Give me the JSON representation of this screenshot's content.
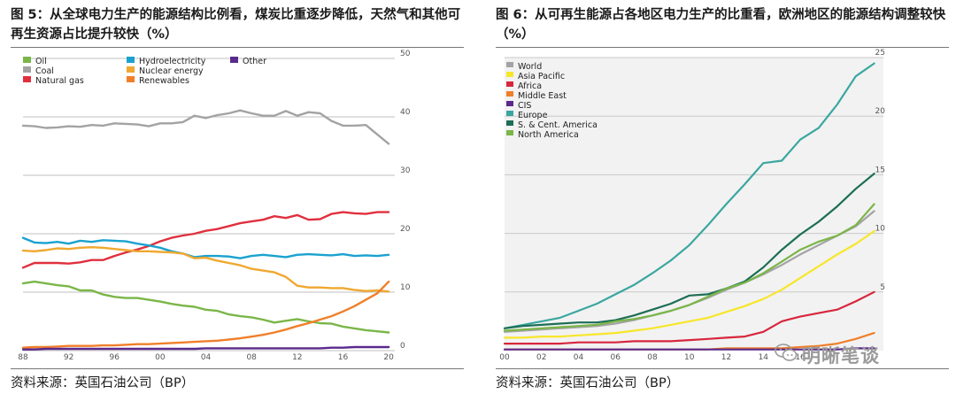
{
  "left": {
    "caption": "图 5：从全球电力生产的能源结构比例看，煤炭比重逐步降低，天然气和其他可再生资源占比提升较快（%）",
    "source": "资料来源：英国石油公司（BP）"
  },
  "right": {
    "caption": "图 6：从可再生能源占各地区电力生产的比重看，欧洲地区的能源结构调整较快（%）",
    "source": "资料来源：英国石油公司（BP）"
  },
  "watermark": "明晰笔谈",
  "colors": {
    "oil": "#7ab648",
    "coal": "#a3a3a3",
    "gas": "#e0303e",
    "hydro": "#1aa2cf",
    "nuclear": "#f0a830",
    "renewables": "#f07f2a",
    "other": "#5a2a8c",
    "world": "#a3a3a3",
    "asia": "#f7e62a",
    "africa": "#d7263d",
    "mideast": "#f07f2a",
    "cis": "#5a2a8c",
    "europe": "#3aa79f",
    "scam": "#1c6e55",
    "namerica": "#7ab648"
  },
  "chart_data": [
    {
      "type": "line",
      "x": [
        1988,
        1989,
        1990,
        1991,
        1992,
        1993,
        1994,
        1995,
        1996,
        1997,
        1998,
        1999,
        2000,
        2001,
        2002,
        2003,
        2004,
        2005,
        2006,
        2007,
        2008,
        2009,
        2010,
        2011,
        2012,
        2013,
        2014,
        2015,
        2016,
        2017,
        2018,
        2019,
        2020
      ],
      "xticks": [
        "88",
        "92",
        "96",
        "00",
        "04",
        "08",
        "12",
        "16",
        "20"
      ],
      "yticks": [
        "0",
        "10",
        "20",
        "30",
        "40",
        "50"
      ],
      "ylim": [
        0,
        50
      ],
      "xlim": [
        1988,
        2021
      ],
      "legend_position": "top-left",
      "series": [
        {
          "name": "Oil",
          "color_key": "oil",
          "values": [
            11.5,
            11.8,
            11.5,
            11.2,
            11.0,
            10.3,
            10.3,
            9.6,
            9.2,
            9.0,
            9.0,
            8.7,
            8.4,
            8.0,
            7.7,
            7.5,
            7.0,
            6.8,
            6.2,
            5.9,
            5.7,
            5.3,
            4.8,
            5.1,
            5.4,
            5.0,
            4.7,
            4.6,
            4.1,
            3.8,
            3.5,
            3.3,
            3.1
          ]
        },
        {
          "name": "Coal",
          "color_key": "coal",
          "values": [
            38.5,
            38.4,
            38.1,
            38.2,
            38.4,
            38.3,
            38.6,
            38.5,
            38.9,
            38.8,
            38.7,
            38.4,
            38.9,
            38.9,
            39.1,
            40.2,
            39.8,
            40.3,
            40.6,
            41.1,
            40.6,
            40.2,
            40.2,
            41.0,
            40.2,
            40.8,
            40.6,
            39.3,
            38.5,
            38.5,
            38.6,
            37.0,
            35.4
          ]
        },
        {
          "name": "Natural gas",
          "color_key": "gas",
          "values": [
            14.2,
            15.0,
            15.0,
            15.0,
            14.9,
            15.1,
            15.5,
            15.5,
            16.2,
            16.8,
            17.3,
            17.9,
            18.7,
            19.3,
            19.7,
            20.0,
            20.5,
            20.8,
            21.3,
            21.8,
            22.1,
            22.4,
            23.0,
            22.7,
            23.2,
            22.4,
            22.5,
            23.4,
            23.7,
            23.5,
            23.4,
            23.7,
            23.7
          ]
        },
        {
          "name": "Hydroelectricity",
          "color_key": "hydro",
          "values": [
            19.3,
            18.5,
            18.4,
            18.6,
            18.3,
            18.8,
            18.6,
            18.9,
            18.8,
            18.7,
            18.3,
            18.0,
            17.6,
            17.0,
            16.6,
            16.0,
            16.2,
            16.2,
            16.1,
            15.8,
            16.2,
            16.4,
            16.2,
            16.0,
            16.4,
            16.5,
            16.4,
            16.3,
            16.5,
            16.2,
            16.3,
            16.2,
            16.4
          ]
        },
        {
          "name": "Nuclear energy",
          "color_key": "nuclear",
          "values": [
            17.1,
            17.0,
            17.2,
            17.5,
            17.4,
            17.6,
            17.7,
            17.6,
            17.4,
            17.2,
            17.0,
            17.0,
            16.9,
            16.8,
            16.6,
            15.8,
            15.9,
            15.4,
            15.0,
            14.6,
            14.0,
            13.7,
            13.4,
            12.6,
            11.1,
            10.8,
            10.8,
            10.7,
            10.7,
            10.4,
            10.2,
            10.3,
            10.1
          ]
        },
        {
          "name": "Renewables",
          "color_key": "renewables",
          "values": [
            0.5,
            0.6,
            0.6,
            0.7,
            0.8,
            0.8,
            0.8,
            0.9,
            0.9,
            1.0,
            1.1,
            1.1,
            1.2,
            1.3,
            1.4,
            1.5,
            1.6,
            1.7,
            1.9,
            2.1,
            2.4,
            2.7,
            3.1,
            3.6,
            4.2,
            4.7,
            5.3,
            5.9,
            6.7,
            7.6,
            8.7,
            9.8,
            11.8
          ]
        },
        {
          "name": "Other",
          "color_key": "other",
          "values": [
            0.2,
            0.2,
            0.3,
            0.3,
            0.3,
            0.3,
            0.3,
            0.3,
            0.3,
            0.3,
            0.3,
            0.3,
            0.3,
            0.3,
            0.3,
            0.3,
            0.4,
            0.4,
            0.4,
            0.4,
            0.4,
            0.4,
            0.4,
            0.4,
            0.4,
            0.4,
            0.4,
            0.5,
            0.5,
            0.6,
            0.6,
            0.6,
            0.6
          ]
        }
      ]
    },
    {
      "type": "line",
      "x": [
        2000,
        2001,
        2002,
        2003,
        2004,
        2005,
        2006,
        2007,
        2008,
        2009,
        2010,
        2011,
        2012,
        2013,
        2014,
        2015,
        2016,
        2017,
        2018,
        2019,
        2020
      ],
      "xticks": [
        "00",
        "02",
        "04",
        "06",
        "08",
        "10",
        "12",
        "14",
        "16"
      ],
      "yticks": [
        "5",
        "10",
        "15",
        "20",
        "25"
      ],
      "ylim": [
        0,
        25
      ],
      "xlim": [
        2000,
        2020.5
      ],
      "legend_position": "top-left",
      "series": [
        {
          "name": "World",
          "color_key": "world",
          "values": [
            1.6,
            1.7,
            1.8,
            1.9,
            2.0,
            2.1,
            2.3,
            2.6,
            3.0,
            3.4,
            3.9,
            4.5,
            5.2,
            5.8,
            6.5,
            7.3,
            8.2,
            9.0,
            9.8,
            10.6,
            11.9
          ]
        },
        {
          "name": "Asia Pacific",
          "color_key": "asia",
          "values": [
            1.1,
            1.1,
            1.2,
            1.2,
            1.3,
            1.4,
            1.5,
            1.7,
            1.9,
            2.2,
            2.5,
            2.8,
            3.3,
            3.8,
            4.4,
            5.2,
            6.2,
            7.2,
            8.2,
            9.1,
            10.2
          ]
        },
        {
          "name": "Africa",
          "color_key": "africa",
          "values": [
            0.6,
            0.6,
            0.6,
            0.6,
            0.7,
            0.7,
            0.7,
            0.8,
            0.8,
            0.8,
            0.9,
            1.0,
            1.1,
            1.2,
            1.6,
            2.5,
            2.9,
            3.2,
            3.5,
            4.2,
            5.0
          ]
        },
        {
          "name": "Middle East",
          "color_key": "mideast",
          "values": [
            0.1,
            0.1,
            0.1,
            0.1,
            0.1,
            0.1,
            0.1,
            0.1,
            0.1,
            0.1,
            0.1,
            0.1,
            0.2,
            0.2,
            0.2,
            0.2,
            0.3,
            0.4,
            0.6,
            1.0,
            1.5
          ]
        },
        {
          "name": "CIS",
          "color_key": "cis",
          "values": [
            0.1,
            0.1,
            0.1,
            0.1,
            0.1,
            0.1,
            0.1,
            0.1,
            0.1,
            0.1,
            0.1,
            0.1,
            0.1,
            0.1,
            0.1,
            0.1,
            0.1,
            0.1,
            0.1,
            0.2,
            0.2
          ]
        },
        {
          "name": "Europe",
          "color_key": "europe",
          "values": [
            1.9,
            2.2,
            2.5,
            2.8,
            3.4,
            4.0,
            4.8,
            5.6,
            6.6,
            7.7,
            9.0,
            10.7,
            12.5,
            14.2,
            16.0,
            16.2,
            18.0,
            19.0,
            21.0,
            23.4,
            24.5
          ]
        },
        {
          "name": "S. & Cent. America",
          "color_key": "scam",
          "values": [
            1.9,
            2.1,
            2.2,
            2.3,
            2.4,
            2.4,
            2.6,
            3.0,
            3.5,
            4.0,
            4.7,
            4.8,
            5.3,
            5.9,
            7.1,
            8.6,
            9.9,
            11.0,
            12.3,
            13.8,
            15.1
          ]
        },
        {
          "name": "North America",
          "color_key": "namerica",
          "values": [
            1.7,
            1.8,
            1.9,
            2.0,
            2.1,
            2.2,
            2.5,
            2.7,
            3.0,
            3.4,
            3.9,
            4.6,
            5.3,
            5.8,
            6.6,
            7.6,
            8.6,
            9.3,
            9.8,
            10.7,
            12.5
          ]
        }
      ]
    }
  ]
}
